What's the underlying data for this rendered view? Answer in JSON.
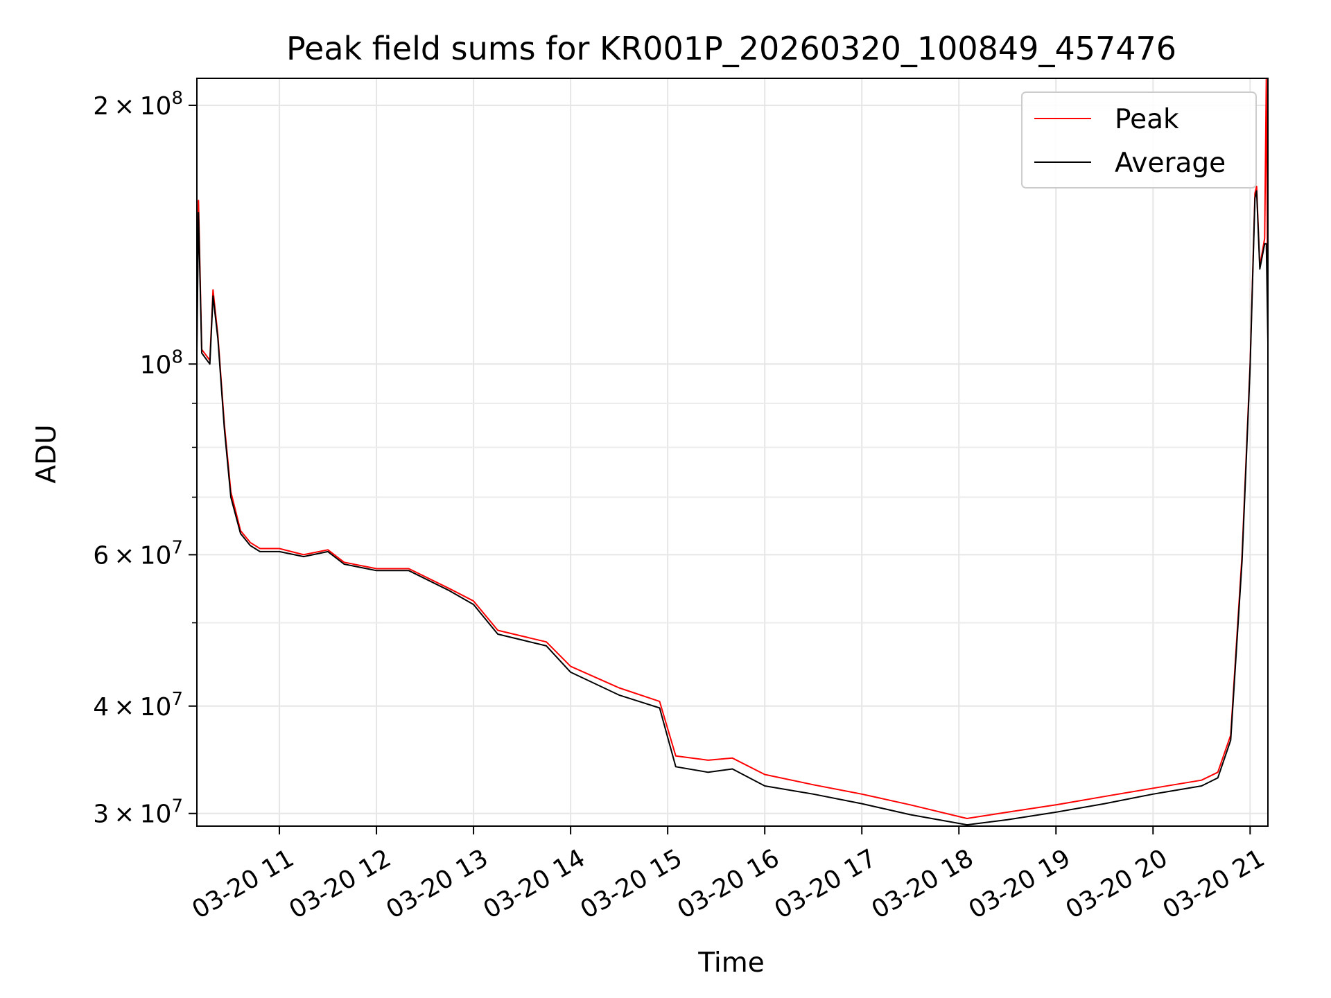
{
  "chart_data": {
    "type": "line",
    "title": "Peak field sums for KR001P_20260320_100849_457476",
    "xlabel": "Time",
    "ylabel": "ADU",
    "yscale": "log",
    "ylim": [
      29000000,
      215000000
    ],
    "xlim": [
      "03-20 10:09",
      "03-20 21:11"
    ],
    "grid": true,
    "legend_position": "top-right",
    "x_ticks": [
      "03-20 11",
      "03-20 12",
      "03-20 13",
      "03-20 14",
      "03-20 15",
      "03-20 16",
      "03-20 17",
      "03-20 18",
      "03-20 19",
      "03-20 20",
      "03-20 21"
    ],
    "y_ticks": [
      {
        "value": 30000000,
        "mantissa": "3",
        "exp": "7"
      },
      {
        "value": 40000000,
        "mantissa": "4",
        "exp": "7"
      },
      {
        "value": 60000000,
        "mantissa": "6",
        "exp": "7"
      },
      {
        "value": 100000000,
        "mantissa": "",
        "exp": "8"
      },
      {
        "value": 200000000,
        "mantissa": "2",
        "exp": "8"
      }
    ],
    "y_minor_ticks": [
      50000000,
      70000000,
      80000000,
      90000000
    ],
    "x": [
      "03-20 10:09",
      "03-20 10:10",
      "03-20 10:12",
      "03-20 10:17",
      "03-20 10:19",
      "03-20 10:22",
      "03-20 10:26",
      "03-20 10:30",
      "03-20 10:36",
      "03-20 10:42",
      "03-20 10:48",
      "03-20 11:00",
      "03-20 11:15",
      "03-20 11:30",
      "03-20 11:40",
      "03-20 12:00",
      "03-20 12:20",
      "03-20 12:45",
      "03-20 13:00",
      "03-20 13:15",
      "03-20 13:45",
      "03-20 14:00",
      "03-20 14:30",
      "03-20 14:55",
      "03-20 15:05",
      "03-20 15:25",
      "03-20 15:40",
      "03-20 16:00",
      "03-20 16:30",
      "03-20 17:00",
      "03-20 17:30",
      "03-20 18:05",
      "03-20 18:30",
      "03-20 19:00",
      "03-20 19:30",
      "03-20 20:00",
      "03-20 20:30",
      "03-20 20:40",
      "03-20 20:48",
      "03-20 20:55",
      "03-20 21:00",
      "03-20 21:03",
      "03-20 21:04",
      "03-20 21:06",
      "03-20 21:09",
      "03-20 21:10",
      "03-20 21:11"
    ],
    "series": [
      {
        "name": "Peak",
        "color": "#ff0000",
        "values": [
          106000000,
          155000000,
          104000000,
          101000000,
          122000000,
          108000000,
          85000000,
          71000000,
          64000000,
          62000000,
          61000000,
          61000000,
          60000000,
          60800000,
          58800000,
          57800000,
          57800000,
          54800000,
          53000000,
          49000000,
          47500000,
          44500000,
          42000000,
          40500000,
          35000000,
          34600000,
          34800000,
          33300000,
          32400000,
          31600000,
          30700000,
          29600000,
          30100000,
          30700000,
          31400000,
          32100000,
          32800000,
          33500000,
          37000000,
          60000000,
          100000000,
          158000000,
          161000000,
          130000000,
          140000000,
          215000000,
          108000000
        ]
      },
      {
        "name": "Average",
        "color": "#000000",
        "values": [
          103000000,
          150000000,
          103000000,
          100000000,
          120000000,
          107000000,
          84000000,
          70000000,
          63500000,
          61500000,
          60500000,
          60500000,
          59700000,
          60500000,
          58500000,
          57500000,
          57500000,
          54500000,
          52500000,
          48500000,
          47000000,
          43800000,
          41200000,
          39800000,
          34000000,
          33500000,
          33800000,
          32300000,
          31600000,
          30800000,
          29900000,
          29100000,
          29500000,
          30100000,
          30800000,
          31600000,
          32300000,
          33000000,
          36500000,
          59000000,
          99000000,
          156000000,
          159000000,
          129000000,
          138000000,
          138000000,
          106000000
        ]
      }
    ]
  }
}
